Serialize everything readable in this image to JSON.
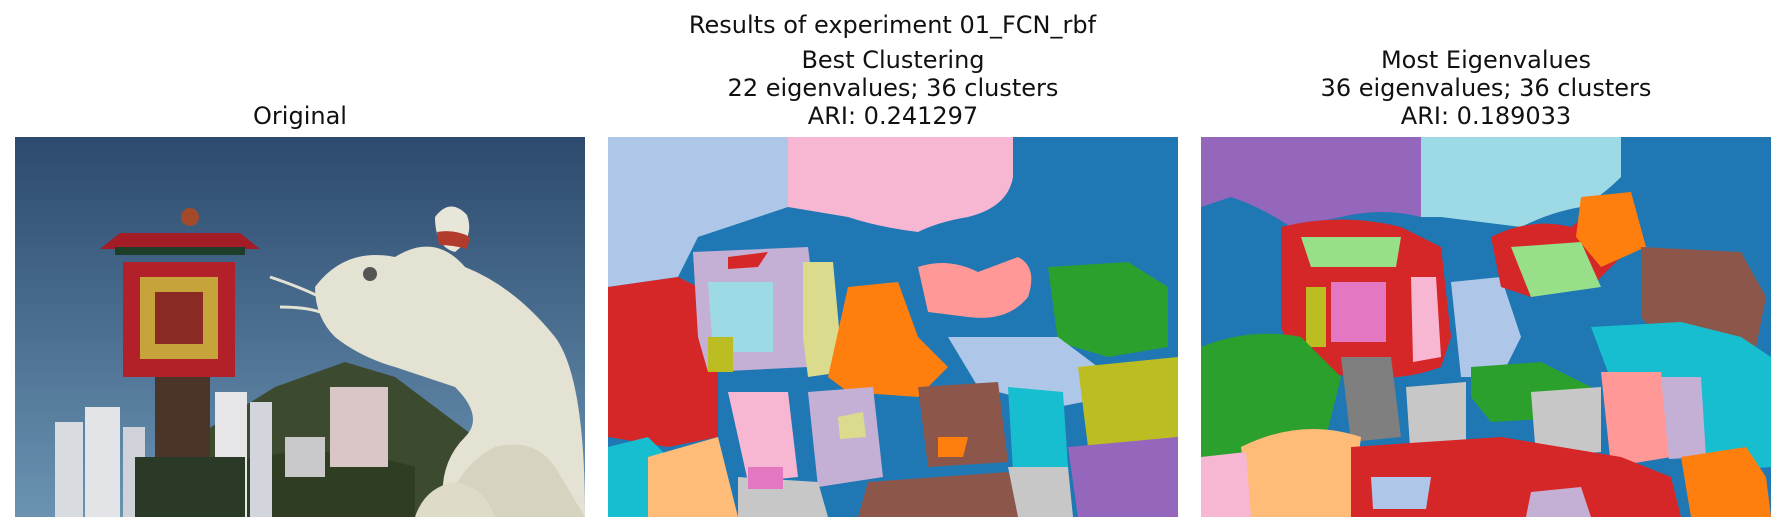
{
  "suptitle": "Results of experiment 01_FCN_rbf",
  "panels": [
    {
      "title_lines": [
        "Original"
      ]
    },
    {
      "title_lines": [
        "Best Clustering",
        "22 eigenvalues; 36 clusters",
        "ARI: 0.241297"
      ]
    },
    {
      "title_lines": [
        "Most Eigenvalues",
        "36 eigenvalues; 36 clusters",
        "ARI: 0.189033"
      ]
    }
  ],
  "colors": {
    "sky_top": "#2c4a6e",
    "sky_bottom": "#5c86a8",
    "statue": "#e4e2d2",
    "pagoda_red": "#b2202a",
    "pagoda_gold": "#c7a43b",
    "tab_blue": "#1f77b4",
    "tab_light_blue": "#aec7e8",
    "tab_orange": "#ff7f0e",
    "tab_light_orange": "#ffbb78",
    "tab_green": "#2ca02c",
    "tab_light_green": "#98df8a",
    "tab_red": "#d62728",
    "tab_light_red": "#ff9896",
    "tab_purple": "#9467bd",
    "tab_light_purple": "#c5b0d5",
    "tab_brown": "#8c564b",
    "tab_pink": "#e377c2",
    "tab_light_pink": "#f7b6d2",
    "tab_gray": "#7f7f7f",
    "tab_light_gray": "#c7c7c7",
    "tab_olive": "#bcbd22",
    "tab_cyan": "#17becf",
    "tab_light_cyan": "#9edae5"
  }
}
